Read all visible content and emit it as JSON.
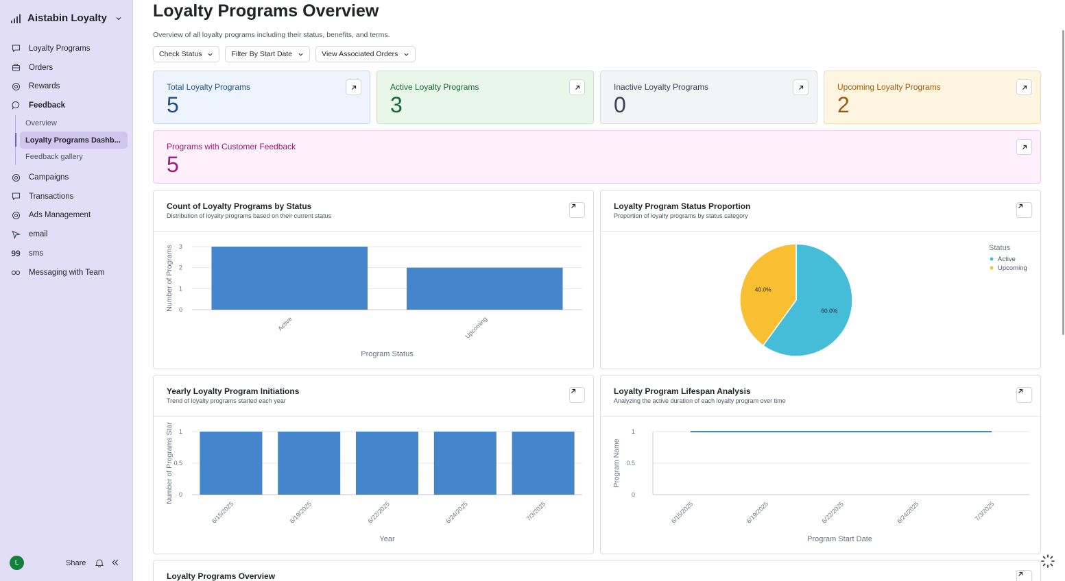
{
  "sidebar": {
    "brand": "Aistabin Loyalty",
    "items": [
      {
        "label": "Loyalty Programs",
        "icon": "chat-square-icon"
      },
      {
        "label": "Orders",
        "icon": "briefcase-icon"
      },
      {
        "label": "Rewards",
        "icon": "at-circle-icon"
      },
      {
        "label": "Feedback",
        "icon": "chat-bubble-icon"
      },
      {
        "label": "Campaigns",
        "icon": "at-circle-icon"
      },
      {
        "label": "Transactions",
        "icon": "chat-square-icon"
      },
      {
        "label": "Ads Management",
        "icon": "at-circle-icon"
      },
      {
        "label": "email",
        "icon": "send-icon"
      },
      {
        "label": "sms",
        "icon": "quote-icon"
      },
      {
        "label": "Messaging with Team",
        "icon": "infinity-icon"
      }
    ],
    "feedback_sub": [
      "Overview",
      "Loyalty Programs Dashb...",
      "Feedback gallery"
    ],
    "footer": {
      "avatar": "L",
      "share": "Share"
    }
  },
  "header": {
    "title": "Loyalty Programs Overview",
    "subtitle": "Overview of all loyalty programs including their status, benefits, and terms.",
    "filters": [
      "Check Status",
      "Filter By Start Date",
      "View Associated Orders"
    ]
  },
  "kpis": [
    {
      "title": "Total Loyalty Programs",
      "value": "5"
    },
    {
      "title": "Active Loyalty Programs",
      "value": "3"
    },
    {
      "title": "Inactive Loyalty Programs",
      "value": "0"
    },
    {
      "title": "Upcoming Loyalty Programs",
      "value": "2"
    },
    {
      "title": "Programs with Customer Feedback",
      "value": "5"
    }
  ],
  "charts": {
    "status_count": {
      "title": "Count of Loyalty Programs by Status",
      "subtitle": "Distribution of loyalty programs based on their current status"
    },
    "status_pie": {
      "title": "Loyalty Program Status Proportion",
      "subtitle": "Proportion of loyalty programs by status category"
    },
    "yearly": {
      "title": "Yearly Loyalty Program Initiations",
      "subtitle": "Trend of loyalty programs started each year"
    },
    "lifespan": {
      "title": "Loyalty Program Lifespan Analysis",
      "subtitle": "Analyzing the active duration of each loyalty program over time"
    },
    "table": {
      "title": "Loyalty Programs Overview"
    }
  },
  "chart_data": [
    {
      "type": "bar",
      "categories": [
        "Active",
        "Upcoming"
      ],
      "values": [
        3,
        2
      ],
      "xlabel": "Program Status",
      "ylabel": "Number of Programs",
      "yticks": [
        0,
        1,
        2,
        3
      ],
      "ylim": [
        0,
        3
      ],
      "color": "#4585cc"
    },
    {
      "type": "pie",
      "legend_title": "Status",
      "legend_placement": "right",
      "slices": [
        {
          "name": "Active",
          "value": 60.0,
          "label": "60.0%",
          "color": "#45bcd8"
        },
        {
          "name": "Upcoming",
          "value": 40.0,
          "label": "40.0%",
          "color": "#f8bf33"
        }
      ]
    },
    {
      "type": "bar",
      "categories": [
        "6/15/2025",
        "6/19/2025",
        "6/22/2025",
        "6/24/2025",
        "7/3/2025"
      ],
      "values": [
        1,
        1,
        1,
        1,
        1
      ],
      "xlabel": "Year",
      "ylabel": "Number of Programs Star",
      "yticks": [
        0,
        0.5,
        1
      ],
      "ylim": [
        0,
        1
      ],
      "color": "#4585cc"
    },
    {
      "type": "line",
      "x": [
        "6/15/2025",
        "6/19/2025",
        "6/22/2025",
        "6/24/2025",
        "7/3/2025"
      ],
      "series": [
        {
          "values": [
            1,
            1,
            1,
            1,
            1
          ]
        }
      ],
      "xlabel": "Program Start Date",
      "ylabel": "Program Name",
      "yticks": [
        0,
        0.5,
        1
      ],
      "ylim": [
        0,
        1
      ],
      "color": "#4585cc"
    }
  ]
}
